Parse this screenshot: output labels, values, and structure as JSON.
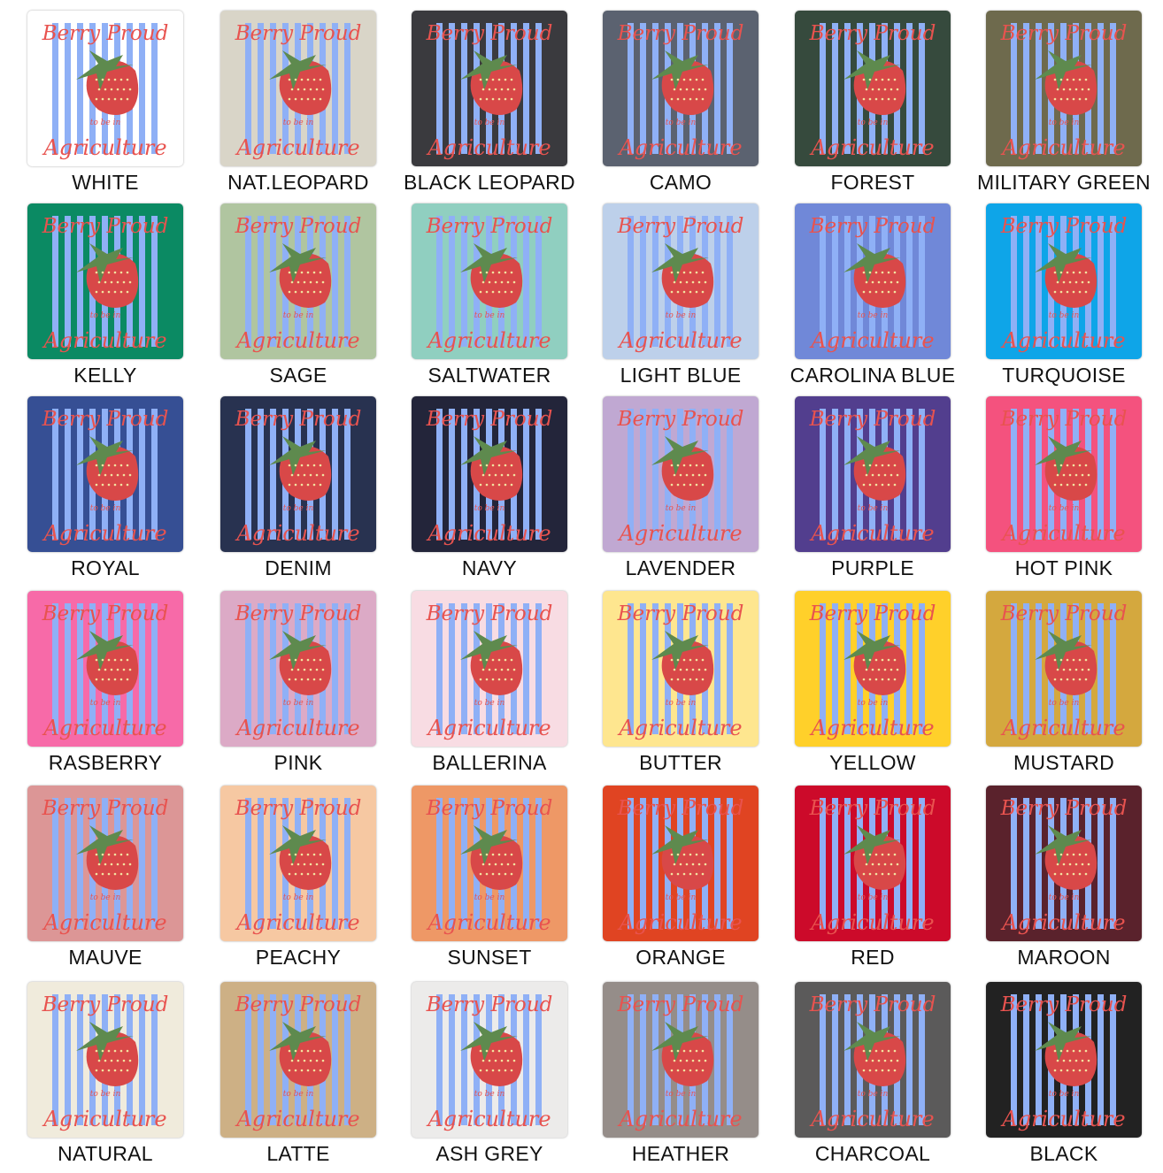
{
  "design": {
    "line1": "Berry Proud",
    "line2": "to be in",
    "line3": "Agriculture",
    "stripe_color": "#8fb0f6",
    "berry_color": "#d84848",
    "leaf_color": "#5e8a4e",
    "text_color": "#e8534f"
  },
  "swatches": [
    {
      "label": "WHITE",
      "color": "#ffffff"
    },
    {
      "label": "NAT.LEOPARD",
      "color": "#d9d5c8"
    },
    {
      "label": "BLACK LEOPARD",
      "color": "#3a3a3e"
    },
    {
      "label": "CAMO",
      "color": "#5b6270"
    },
    {
      "label": "FOREST",
      "color": "#364a3d"
    },
    {
      "label": "MILITARY GREEN",
      "color": "#6e6a4d"
    },
    {
      "label": "KELLY",
      "color": "#0b8a63"
    },
    {
      "label": "SAGE",
      "color": "#b0c5a0"
    },
    {
      "label": "SALTWATER",
      "color": "#90cfc0"
    },
    {
      "label": "LIGHT BLUE",
      "color": "#bdd0ea"
    },
    {
      "label": "CAROLINA BLUE",
      "color": "#7088d8"
    },
    {
      "label": "TURQUOISE",
      "color": "#0ea5e8"
    },
    {
      "label": "ROYAL",
      "color": "#364f94"
    },
    {
      "label": "DENIM",
      "color": "#283250"
    },
    {
      "label": "NAVY",
      "color": "#23253a"
    },
    {
      "label": "LAVENDER",
      "color": "#c0a8d2"
    },
    {
      "label": "PURPLE",
      "color": "#523e8e"
    },
    {
      "label": "HOT PINK",
      "color": "#f4527e"
    },
    {
      "label": "RASBERRY",
      "color": "#f76aa8"
    },
    {
      "label": "PINK",
      "color": "#dcaac6"
    },
    {
      "label": "BALLERINA",
      "color": "#f8dce3"
    },
    {
      "label": "BUTTER",
      "color": "#fee68f"
    },
    {
      "label": "YELLOW",
      "color": "#ffd02a"
    },
    {
      "label": "MUSTARD",
      "color": "#d4a83e"
    },
    {
      "label": "MAUVE",
      "color": "#dc9696"
    },
    {
      "label": "PEACHY",
      "color": "#f6c8a2"
    },
    {
      "label": "SUNSET",
      "color": "#ee9866"
    },
    {
      "label": "ORANGE",
      "color": "#e04422"
    },
    {
      "label": "RED",
      "color": "#cc0a2a"
    },
    {
      "label": "MAROON",
      "color": "#5a222c"
    },
    {
      "label": "NATURAL",
      "color": "#f0ebdc"
    },
    {
      "label": "LATTE",
      "color": "#cdb085"
    },
    {
      "label": "ASH GREY",
      "color": "#ecebea"
    },
    {
      "label": "HEATHER",
      "color": "#958d89"
    },
    {
      "label": "CHARCOAL",
      "color": "#5b5a5a"
    },
    {
      "label": "BLACK",
      "color": "#222222"
    }
  ]
}
